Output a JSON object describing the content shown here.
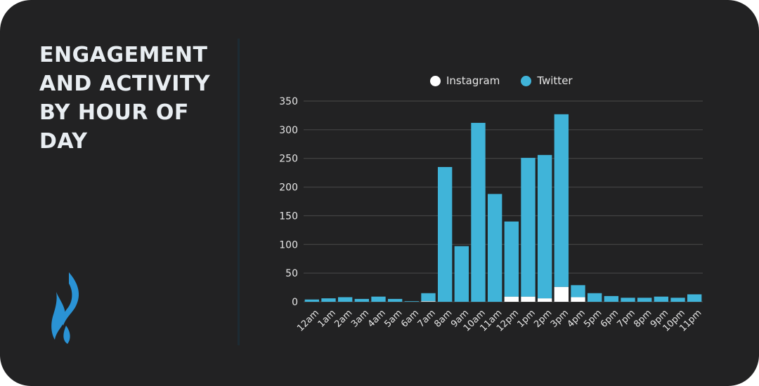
{
  "title": "ENGAGEMENT AND ACTIVITY BY HOUR OF DAY",
  "colors": {
    "background": "#222223",
    "instagram": "#ffffff",
    "twitter": "#40b4d9",
    "grid": "#4a4a4a"
  },
  "logo_icon": "flame-icon",
  "chart_data": {
    "type": "bar",
    "stacked": true,
    "title": "ENGAGEMENT AND ACTIVITY BY HOUR OF DAY",
    "xlabel": "",
    "ylabel": "",
    "ylim": [
      0,
      350
    ],
    "yticks": [
      0,
      50,
      100,
      150,
      200,
      250,
      300,
      350
    ],
    "grid": true,
    "legend_position": "top",
    "categories": [
      "12am",
      "1am",
      "2am",
      "3am",
      "4am",
      "5am",
      "6am",
      "7am",
      "8am",
      "9am",
      "10am",
      "11am",
      "12pm",
      "1pm",
      "2pm",
      "3pm",
      "4pm",
      "5pm",
      "6pm",
      "7pm",
      "8pm",
      "9pm",
      "10pm",
      "11pm"
    ],
    "series": [
      {
        "name": "Instagram",
        "color": "#ffffff",
        "values": [
          0,
          0,
          0,
          0,
          0,
          0,
          0,
          1,
          0,
          0,
          0,
          0,
          9,
          9,
          6,
          26,
          8,
          0,
          0,
          0,
          0,
          0,
          0,
          0
        ]
      },
      {
        "name": "Twitter",
        "color": "#40b4d9",
        "values": [
          4,
          6,
          8,
          5,
          9,
          5,
          1,
          14,
          235,
          97,
          312,
          188,
          131,
          242,
          250,
          301,
          21,
          15,
          10,
          7,
          7,
          9,
          7,
          13
        ]
      }
    ]
  }
}
